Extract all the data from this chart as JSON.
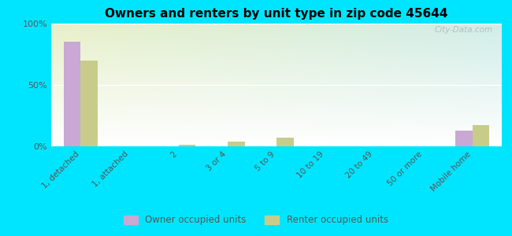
{
  "title": "Owners and renters by unit type in zip code 45644",
  "categories": [
    "1, detached",
    "1, attached",
    "2",
    "3 or 4",
    "5 to 9",
    "10 to 19",
    "20 to 49",
    "50 or more",
    "Mobile home"
  ],
  "owner_values": [
    85,
    0,
    0,
    0,
    0,
    0,
    0,
    0,
    13
  ],
  "renter_values": [
    70,
    0,
    1,
    4,
    7,
    0,
    0,
    0,
    17
  ],
  "owner_color": "#c9a8d4",
  "renter_color": "#c8cc8a",
  "background_color": "#00e5ff",
  "yticks": [
    0,
    50,
    100
  ],
  "ytick_labels": [
    "0%",
    "50%",
    "100%"
  ],
  "watermark": "City-Data.com",
  "legend_owner": "Owner occupied units",
  "legend_renter": "Renter occupied units",
  "bar_width": 0.35
}
